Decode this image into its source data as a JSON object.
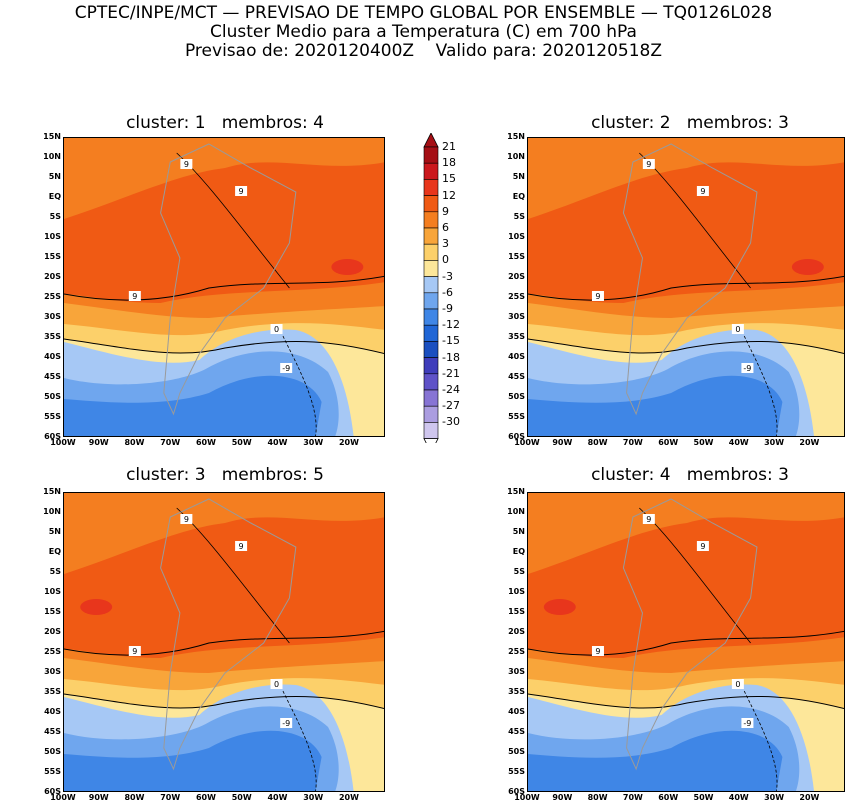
{
  "header": {
    "line1": "CPTEC/INPE/MCT — PREVISAO DE TEMPO GLOBAL POR ENSEMBLE — TQ0126L028",
    "line2": "Cluster Medio para a Temperatura (C) em 700 hPa",
    "line3": "Previsao de: 2020120400Z    Valido para: 2020120518Z"
  },
  "panels": [
    {
      "title": "cluster: 1   membros: 4"
    },
    {
      "title": "cluster: 2   membros: 3"
    },
    {
      "title": "cluster: 3   membros: 5"
    },
    {
      "title": "cluster: 4   membros: 3"
    }
  ],
  "lat_labels": [
    "15N",
    "10N",
    "5N",
    "EQ",
    "5S",
    "10S",
    "15S",
    "20S",
    "25S",
    "30S",
    "35S",
    "40S",
    "45S",
    "50S",
    "55S",
    "60S"
  ],
  "lon_labels": [
    "100W",
    "90W",
    "80W",
    "70W",
    "60W",
    "50W",
    "40W",
    "30W",
    "20W"
  ],
  "colorbar": {
    "ticks": [
      "21",
      "18",
      "15",
      "12",
      "9",
      "6",
      "3",
      "0",
      "-3",
      "-6",
      "-9",
      "-12",
      "-15",
      "-18",
      "-21",
      "-24",
      "-27",
      "-30"
    ],
    "colors": [
      "#a50f15",
      "#cb181d",
      "#e8361c",
      "#f05a14",
      "#f47e20",
      "#f8a53a",
      "#fcd06a",
      "#fde79a",
      "#a6c8f5",
      "#6fa6ee",
      "#3f86e6",
      "#2066d6",
      "#1a4fc0",
      "#3f3dbb",
      "#5f52c8",
      "#8774d4",
      "#ab9de0",
      "#cfc6ee"
    ]
  },
  "contour_labels": {
    "warm": "9",
    "zero": "0",
    "cold": "-9"
  }
}
